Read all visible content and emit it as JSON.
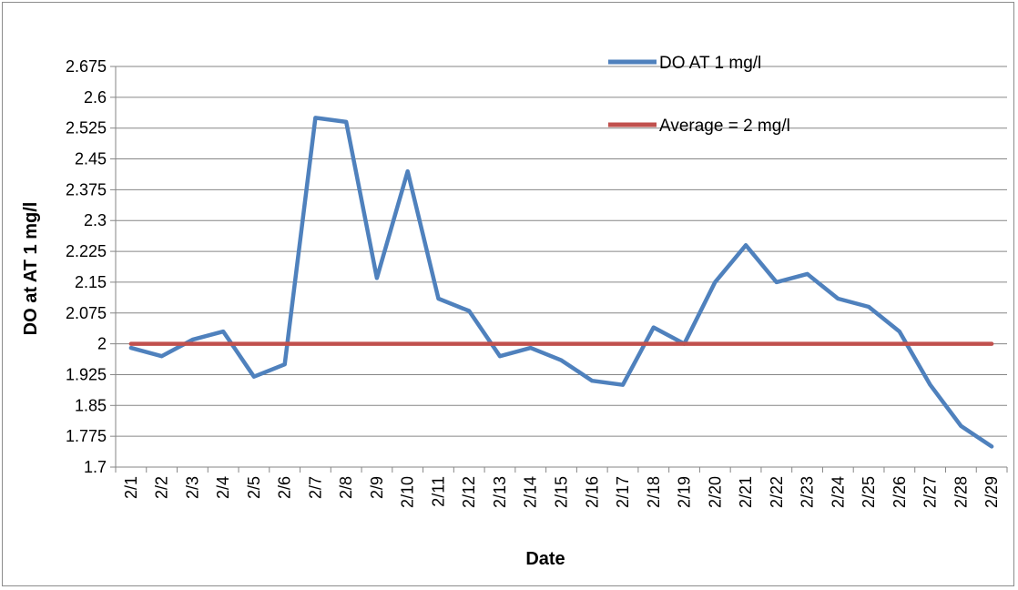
{
  "chart_data": {
    "type": "line",
    "title": "",
    "xlabel": "Date",
    "ylabel": "DO at AT 1 mg/l",
    "categories": [
      "2/1",
      "2/2",
      "2/3",
      "2/4",
      "2/5",
      "2/6",
      "2/7",
      "2/8",
      "2/9",
      "2/10",
      "2/11",
      "2/12",
      "2/13",
      "2/14",
      "2/15",
      "2/16",
      "2/17",
      "2/18",
      "2/19",
      "2/20",
      "2/21",
      "2/22",
      "2/23",
      "2/24",
      "2/25",
      "2/26",
      "2/27",
      "2/28",
      "2/29"
    ],
    "ylim": [
      1.7,
      2.675
    ],
    "yticks": [
      "1.7",
      "1.775",
      "1.85",
      "1.925",
      "2",
      "2.075",
      "2.15",
      "2.225",
      "2.3",
      "2.375",
      "2.45",
      "2.525",
      "2.6",
      "2.675"
    ],
    "grid": true,
    "legend_position": "top-right",
    "series": [
      {
        "name": "DO AT 1 mg/l",
        "color": "#4f81bd",
        "values": [
          1.99,
          1.97,
          2.01,
          2.03,
          1.92,
          1.95,
          2.55,
          2.54,
          2.16,
          2.42,
          2.11,
          2.08,
          1.97,
          1.99,
          1.96,
          1.91,
          1.9,
          2.04,
          2.0,
          2.15,
          2.24,
          2.15,
          2.17,
          2.11,
          2.09,
          2.03,
          1.9,
          1.8,
          1.75
        ]
      },
      {
        "name": "Average = 2 mg/l",
        "color": "#c0504d",
        "values": [
          2,
          2,
          2,
          2,
          2,
          2,
          2,
          2,
          2,
          2,
          2,
          2,
          2,
          2,
          2,
          2,
          2,
          2,
          2,
          2,
          2,
          2,
          2,
          2,
          2,
          2,
          2,
          2,
          2
        ]
      }
    ]
  }
}
